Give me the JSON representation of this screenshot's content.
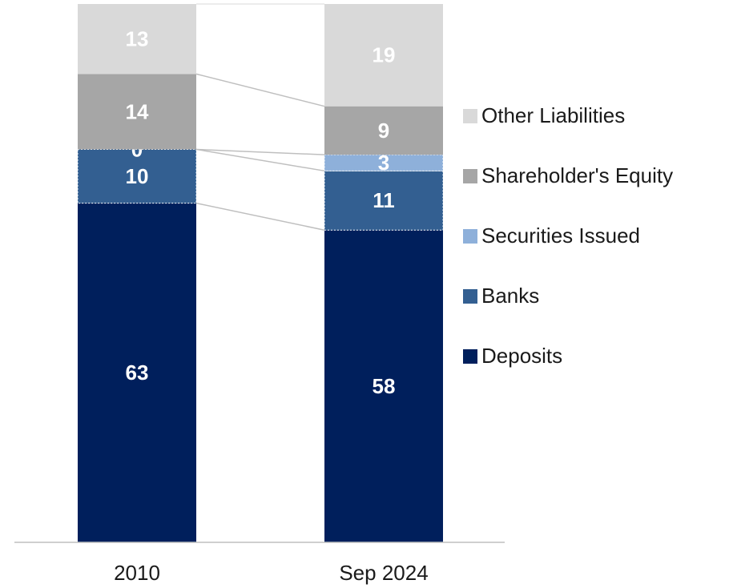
{
  "chart_data": {
    "type": "stacked_bar",
    "categories": [
      "2010",
      "Sep 2024"
    ],
    "series": [
      {
        "name": "Deposits",
        "color": "#001f5c",
        "values": [
          63,
          58
        ]
      },
      {
        "name": "Banks",
        "color": "#335f91",
        "values": [
          10,
          11
        ]
      },
      {
        "name": "Securities Issued",
        "color": "#8eb0da",
        "values": [
          0,
          3
        ]
      },
      {
        "name": "Shareholder's Equity",
        "color": "#a6a6a6",
        "values": [
          14,
          9
        ]
      },
      {
        "name": "Other Liabilities",
        "color": "#d9d9d9",
        "values": [
          13,
          19
        ]
      }
    ]
  }
}
